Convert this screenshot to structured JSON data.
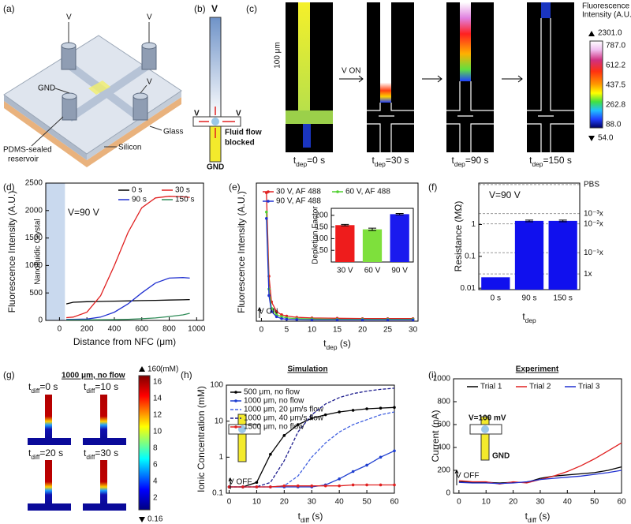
{
  "panel_labels": [
    "(a)",
    "(b)",
    "(c)",
    "(d)",
    "(e)",
    "(f)",
    "(g)",
    "(h)",
    "(i)"
  ],
  "panel_a": {
    "v_labels": [
      "V",
      "V",
      "V"
    ],
    "gnd": "GND",
    "reservoir": [
      "PDMS-sealed",
      "reservoir"
    ],
    "glass": "Glass",
    "silicon": "Silicon"
  },
  "panel_b": {
    "v_labels": [
      "V",
      "V",
      "V"
    ],
    "note": [
      "Fluid flow",
      "blocked"
    ],
    "gnd": "GND"
  },
  "panel_c": {
    "scale_bar": "100 μm",
    "arrow_label": "V ON",
    "times": [
      [
        "t",
        "dep",
        "=0 s"
      ],
      [
        "t",
        "dep",
        "=30 s"
      ],
      [
        "t",
        "dep",
        "=90 s"
      ],
      [
        "t",
        "dep",
        "=150 s"
      ]
    ],
    "colorbar": {
      "title": [
        "Fluorescence",
        "Intensity (A.U.)"
      ],
      "max": "2301.0",
      "ticks": [
        "787.0",
        "612.2",
        "437.5",
        "262.8",
        "88.0"
      ],
      "min": "54.0"
    }
  },
  "panel_g": {
    "title": "1000 μm, no flow",
    "times": [
      [
        "t",
        "diff",
        "=0 s"
      ],
      [
        "t",
        "diff",
        "=10 s"
      ],
      [
        "t",
        "diff",
        "=20 s"
      ],
      [
        "t",
        "diff",
        "=30 s"
      ]
    ],
    "colorbar": {
      "max": "160",
      "unit": "(mM)",
      "ticks": [
        "16",
        "14",
        "12",
        "10",
        "8",
        "6",
        "4",
        "2"
      ],
      "min": "0.16"
    }
  },
  "chart_data": [
    {
      "type": "line",
      "xlabel": "Distance from NFC (μm)",
      "ylabel": "Fluorescence Intensity (A.U.)",
      "xlim": [
        -100,
        1050
      ],
      "ylim": [
        0,
        2500
      ],
      "xticks": [
        0,
        200,
        400,
        600,
        800,
        1000
      ],
      "yticks": [
        0,
        500,
        1000,
        1500,
        2000,
        2500
      ],
      "shade_x": [
        -100,
        40
      ],
      "annotations": [
        "V=90 V",
        "Nanofluidic Crystal"
      ],
      "x": [
        50,
        100,
        200,
        300,
        400,
        500,
        600,
        700,
        800,
        900,
        950
      ],
      "series": [
        {
          "name": "0 s",
          "color": "#000000",
          "values": [
            300,
            330,
            340,
            345,
            350,
            355,
            360,
            365,
            370,
            375,
            380
          ]
        },
        {
          "name": "30 s",
          "color": "#e02020",
          "values": [
            50,
            60,
            150,
            450,
            1000,
            1600,
            2050,
            2230,
            2260,
            2250,
            2240
          ]
        },
        {
          "name": "90 s",
          "color": "#2030d0",
          "values": [
            20,
            20,
            25,
            60,
            150,
            300,
            500,
            680,
            770,
            780,
            770
          ]
        },
        {
          "name": "150 s",
          "color": "#2e8b57",
          "values": [
            10,
            10,
            10,
            12,
            15,
            20,
            30,
            45,
            70,
            100,
            130
          ]
        }
      ]
    },
    {
      "type": "line",
      "xlabel": [
        "t",
        "dep",
        " (s)"
      ],
      "ylabel": "Fluorescence Intensity (A.U.)",
      "xlim": [
        -1,
        31
      ],
      "ylim": [
        0,
        2150
      ],
      "xticks": [
        0,
        5,
        10,
        15,
        20,
        25,
        30
      ],
      "annotations": [
        "V ON"
      ],
      "x": [
        1,
        1.5,
        2,
        3,
        4,
        5,
        7,
        10,
        15,
        20,
        25,
        30
      ],
      "series": [
        {
          "name": "30 V, AF 488",
          "color": "#e02020",
          "marker": true,
          "values": [
            2000,
            700,
            300,
            150,
            100,
            80,
            60,
            50,
            45,
            40,
            40,
            40
          ]
        },
        {
          "name": "60 V, AF 488",
          "color": "#50d030",
          "marker": true,
          "values": [
            1700,
            500,
            200,
            100,
            70,
            50,
            40,
            35,
            30,
            30,
            30,
            30
          ]
        },
        {
          "name": "90 V, AF 488",
          "color": "#2030d0",
          "marker": true,
          "values": [
            1600,
            400,
            150,
            70,
            40,
            30,
            25,
            20,
            20,
            20,
            20,
            20
          ]
        }
      ]
    },
    {
      "type": "bar",
      "ylabel": "Depletion Factor",
      "categories": [
        "30 V",
        "60 V",
        "90 V"
      ],
      "values": [
        158,
        140,
        205
      ],
      "errors": [
        3,
        5,
        3
      ],
      "colors": [
        "#ee1c1c",
        "#7ee03c",
        "#1a1aee"
      ],
      "ylim": [
        0,
        230
      ],
      "yticks": [
        50,
        100,
        150,
        200
      ]
    },
    {
      "type": "bar",
      "log_y": true,
      "xlabel": [
        "t",
        "dep"
      ],
      "ylabel": "Resistance (MΩ)",
      "categories": [
        "0 s",
        "90 s",
        "150 s"
      ],
      "values": [
        0.022,
        1.3,
        1.3
      ],
      "errors": [
        0,
        0.08,
        0.08
      ],
      "color": "#1010ee",
      "ylim": [
        0.009,
        20
      ],
      "yticks": [
        0.01,
        0.1,
        1
      ],
      "annotations": [
        "V=90 V"
      ],
      "ref_lines": [
        {
          "value": 18,
          "label": "PBS"
        },
        {
          "value": 2.2,
          "label": "10⁻³x"
        },
        {
          "value": 1.05,
          "label": "10⁻²x"
        },
        {
          "value": 0.13,
          "label": "10⁻¹x"
        },
        {
          "value": 0.028,
          "label": "1x"
        }
      ]
    },
    {
      "type": "line",
      "log_y": true,
      "title": "Simulation",
      "xlabel": [
        "t",
        "diff",
        " (s)"
      ],
      "ylabel": "Ionic Concentration (mM)",
      "xlim": [
        -1,
        60
      ],
      "ylim": [
        0.1,
        100
      ],
      "xticks": [
        0,
        10,
        20,
        30,
        40,
        50,
        60
      ],
      "yticks": [
        0.1,
        1,
        10,
        100
      ],
      "annotations": [
        "V OFF"
      ],
      "x": [
        0,
        5,
        10,
        15,
        20,
        25,
        30,
        35,
        40,
        45,
        50,
        55,
        60
      ],
      "series": [
        {
          "name": "500 μm, no flow",
          "color": "#000000",
          "marker": true,
          "values": [
            0.15,
            0.15,
            0.2,
            1.2,
            4,
            8,
            12,
            15,
            18,
            20,
            22,
            23,
            24
          ]
        },
        {
          "name": "1000 μm, no flow",
          "color": "#1f3fd0",
          "marker": true,
          "values": [
            0.15,
            0.15,
            0.15,
            0.15,
            0.15,
            0.15,
            0.15,
            0.17,
            0.25,
            0.4,
            0.6,
            1,
            1.5
          ]
        },
        {
          "name": "1000 μm, 20 μm/s flow",
          "color": "#4060e0",
          "style": "dashed",
          "values": [
            0.15,
            0.15,
            0.15,
            0.15,
            0.16,
            0.3,
            1,
            2.5,
            5,
            8,
            11,
            15,
            18
          ]
        },
        {
          "name": "1000 μm, 40 μm/s flow",
          "color": "#1a1a8c",
          "style": "dashed",
          "values": [
            0.15,
            0.15,
            0.15,
            0.2,
            0.8,
            5,
            15,
            30,
            45,
            58,
            68,
            76,
            82
          ]
        },
        {
          "name": "1500 μm, no flow",
          "color": "#e02020",
          "marker": true,
          "values": [
            0.15,
            0.15,
            0.15,
            0.15,
            0.16,
            0.16,
            0.16,
            0.16,
            0.16,
            0.17,
            0.17,
            0.17,
            0.17
          ]
        }
      ]
    },
    {
      "type": "line",
      "title": "Experiment",
      "xlabel": [
        "t",
        "diff",
        " (s)"
      ],
      "ylabel": "Current (nA)",
      "xlim": [
        -2,
        60
      ],
      "ylim": [
        0,
        1000
      ],
      "xticks": [
        0,
        10,
        20,
        30,
        40,
        50,
        60
      ],
      "yticks": [
        0,
        200,
        400,
        600,
        800,
        1000
      ],
      "annotations": [
        "V OFF",
        "V=100 mV",
        "GND"
      ],
      "x": [
        0,
        5,
        10,
        15,
        20,
        25,
        30,
        35,
        40,
        45,
        50,
        55,
        60
      ],
      "series": [
        {
          "name": "Trial 1",
          "color": "#000000",
          "values": [
            100,
            95,
            95,
            90,
            95,
            95,
            130,
            150,
            160,
            170,
            180,
            200,
            230
          ]
        },
        {
          "name": "Trial 2",
          "color": "#e02020",
          "values": [
            110,
            100,
            100,
            80,
            100,
            90,
            120,
            150,
            190,
            240,
            300,
            370,
            440
          ]
        },
        {
          "name": "Trial 3",
          "color": "#2030d0",
          "values": [
            95,
            90,
            90,
            85,
            90,
            100,
            120,
            130,
            140,
            150,
            165,
            180,
            200
          ]
        }
      ]
    }
  ]
}
